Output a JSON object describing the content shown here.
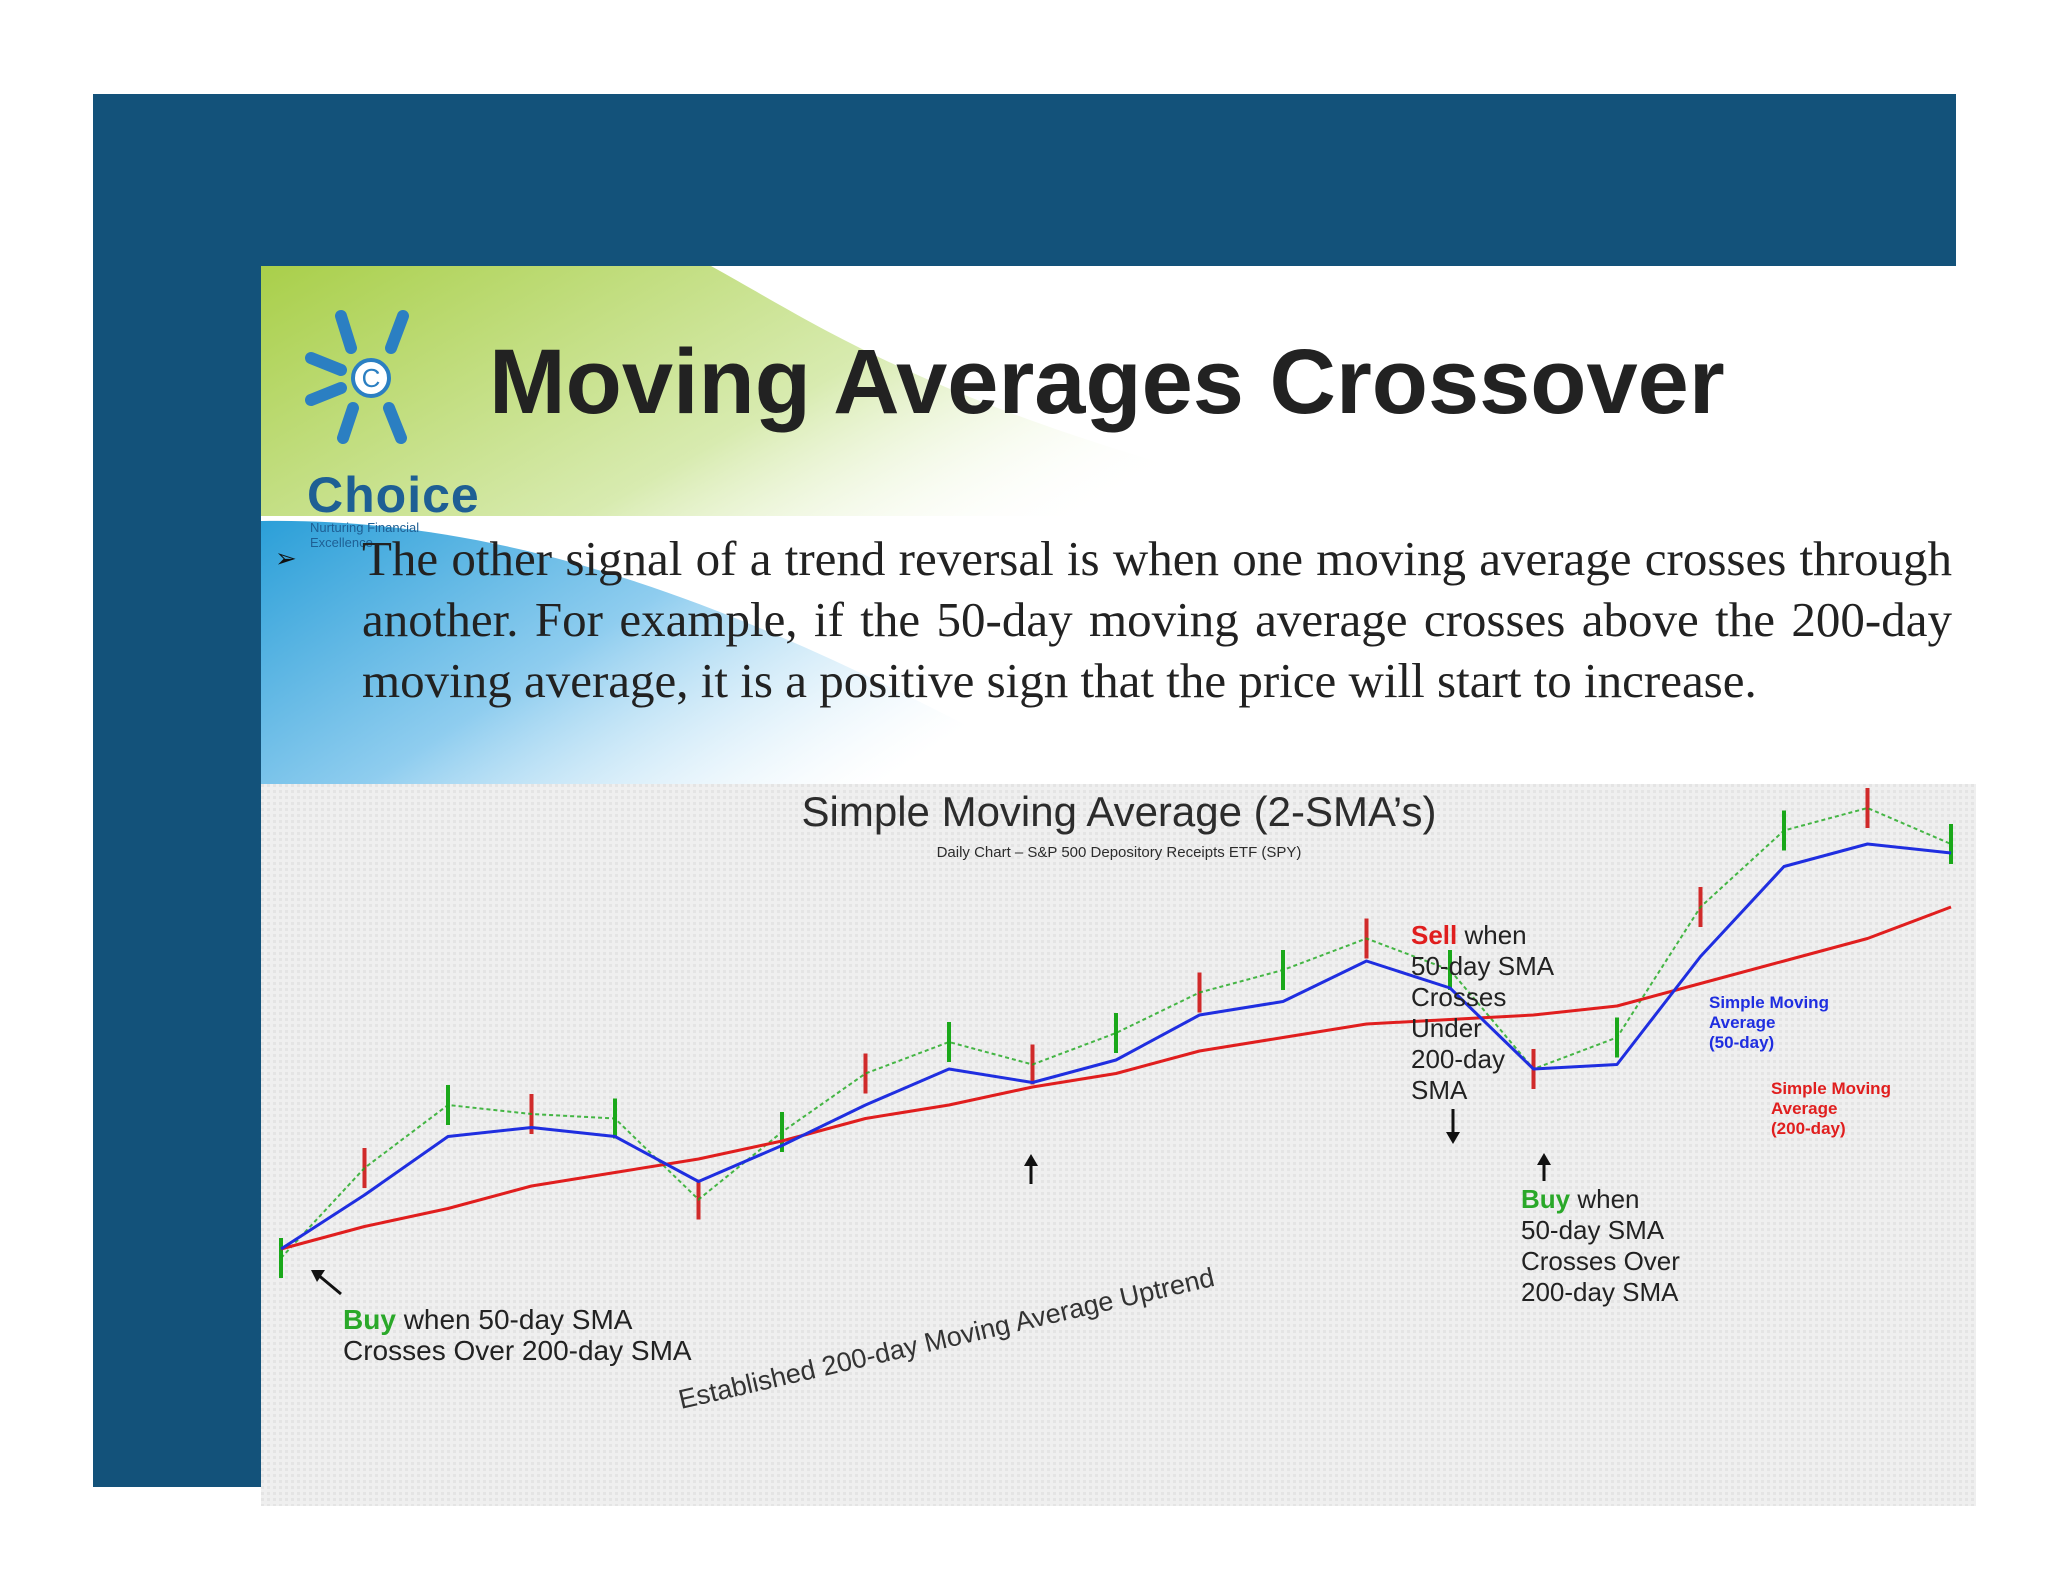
{
  "slide": {
    "title": "Moving Averages Crossover",
    "brand": {
      "name": "Choice",
      "tagline": "Nurturing Financial Excellence",
      "mark_letter": "C"
    },
    "bullet_icon": "arrow-bullet-icon",
    "bullet_text": "The other signal of a trend reversal is when one moving average crosses through another. For example, if the 50-day moving average crosses above the 200-day moving average, it is a positive sign that the price will start to increase.",
    "colors": {
      "frame": "#13527a",
      "brand": "#1e5f94",
      "deco_green": "#a9cf4a",
      "deco_blue": "#2b9fd8"
    }
  },
  "chart_data": {
    "type": "line",
    "title": "Simple Moving Average (2-SMA’s)",
    "subtitle": "Daily Chart – S&P 500 Depository Receipts ETF (SPY)",
    "x": [
      0,
      5,
      10,
      15,
      20,
      25,
      30,
      35,
      40,
      45,
      50,
      55,
      60,
      65,
      70,
      75,
      80,
      85,
      90,
      95,
      100
    ],
    "ylim": [
      0,
      100
    ],
    "grid": false,
    "legend": "inline",
    "series": [
      {
        "name": "Simple Moving Average (50-day)",
        "color": "#1f2ee0",
        "values": [
          10,
          22,
          35,
          37,
          35,
          25,
          33,
          42,
          50,
          47,
          52,
          62,
          65,
          74,
          68,
          50,
          51,
          75,
          95,
          100,
          98
        ]
      },
      {
        "name": "Simple Moving Average (200-day)",
        "color": "#e01e1e",
        "values": [
          10,
          15,
          19,
          24,
          27,
          30,
          34,
          39,
          42,
          46,
          49,
          54,
          57,
          60,
          61,
          62,
          64,
          69,
          74,
          79,
          86
        ]
      },
      {
        "name": "",
        "color": "#1aa81a",
        "values": [
          8,
          28,
          42,
          40,
          39,
          21,
          36,
          49,
          56,
          51,
          58,
          67,
          72,
          79,
          72,
          50,
          57,
          86,
          103,
          108,
          100
        ]
      }
    ],
    "annotations": {
      "established": "Established 200-day Moving Average Uptrend",
      "buy_bottom_word": "Buy",
      "buy_bottom_rest": "when 50-day SMA",
      "buy_bottom_line2": "Crosses Over 200-day SMA",
      "sell_word": "Sell",
      "sell_lines": [
        "when",
        "50-day SMA",
        "Crosses",
        "Under",
        "200-day",
        "SMA"
      ],
      "buy_right_word": "Buy",
      "buy_right_lines": [
        "when",
        "50-day SMA",
        "Crosses Over",
        "200-day SMA"
      ],
      "sma50_label": [
        "Simple Moving",
        "Average",
        "(50-day)"
      ],
      "sma200_label": [
        "Simple Moving",
        "Average",
        "(200-day)"
      ]
    }
  }
}
